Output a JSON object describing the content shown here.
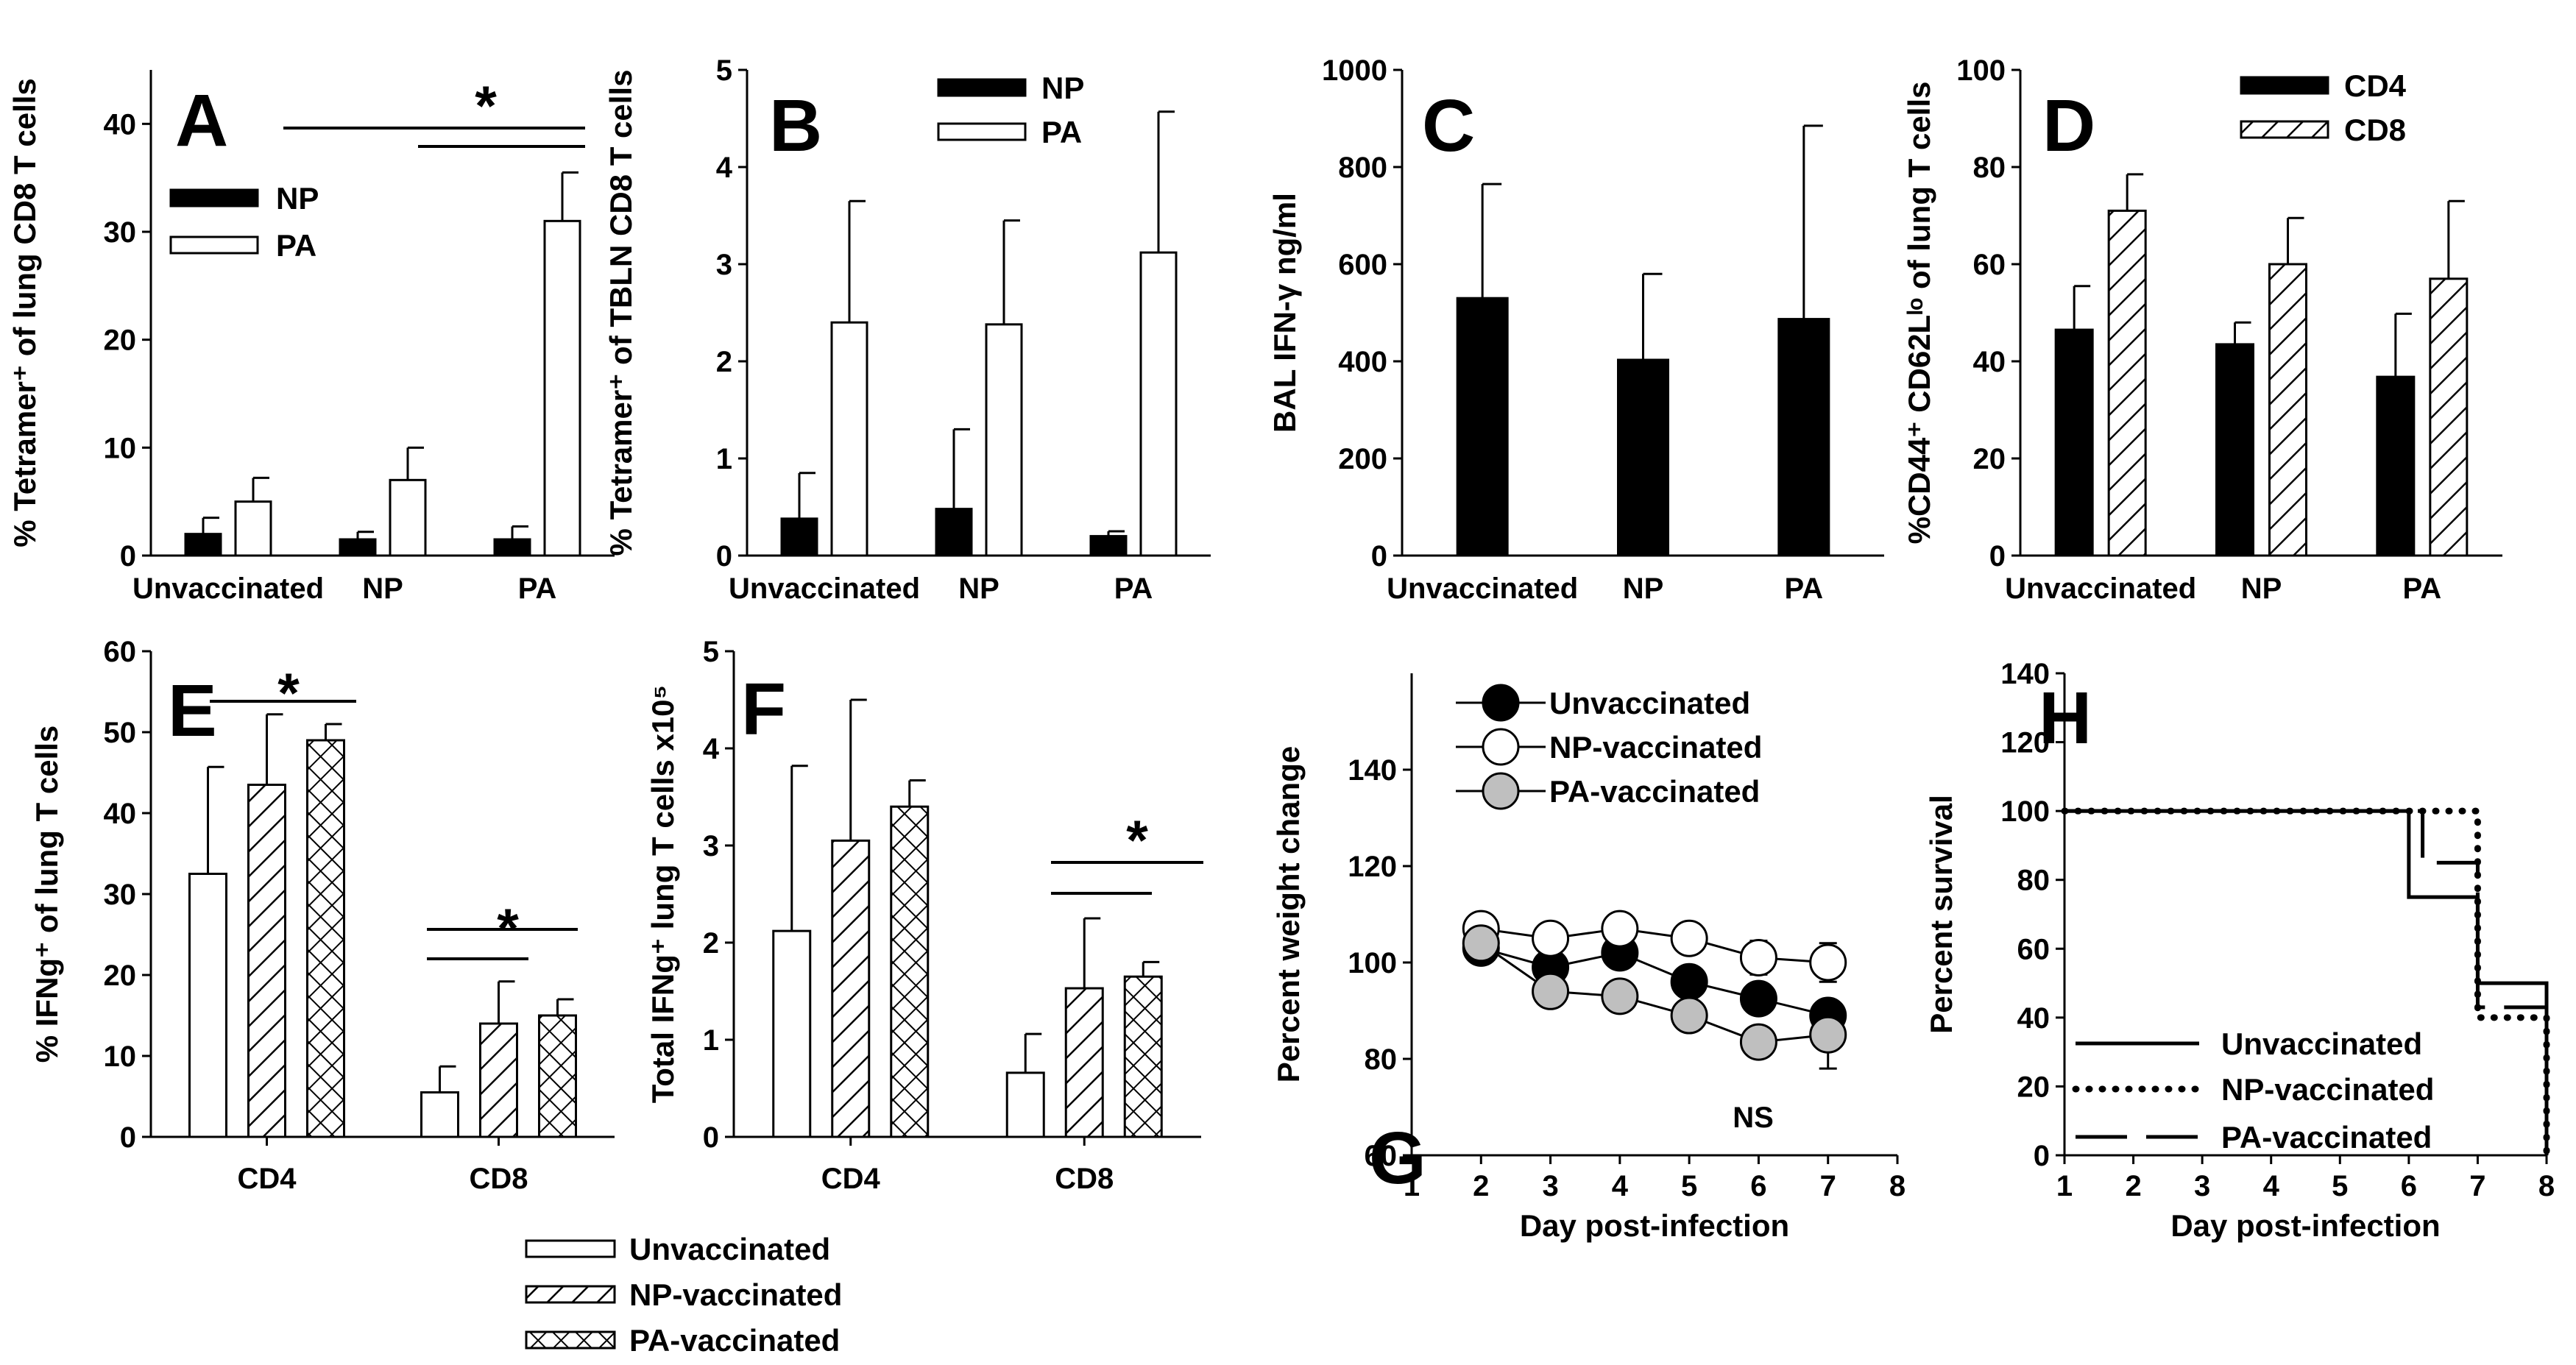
{
  "figure": {
    "legend_bottom": [
      "Unvaccinated",
      "NP-vaccinated",
      "PA-vaccinated"
    ]
  },
  "chart_data": [
    {
      "panel": "A",
      "type": "bar",
      "categories": [
        "Unvaccinated",
        "NP",
        "PA"
      ],
      "ylabel": "% Tetramer⁺ of lung CD8 T cells",
      "ylim": [
        0,
        45
      ],
      "yticks": [
        0,
        10,
        20,
        30,
        40
      ],
      "series": [
        {
          "name": "NP",
          "style": "black",
          "values": [
            2.0,
            1.5,
            1.5
          ],
          "errors": [
            1.5,
            0.7,
            1.2
          ]
        },
        {
          "name": "PA",
          "style": "white",
          "values": [
            5.0,
            7.0,
            31.0
          ],
          "errors": [
            2.2,
            3.0,
            4.5
          ]
        }
      ],
      "legend": [
        "NP",
        "PA"
      ],
      "annotations": [
        "*"
      ]
    },
    {
      "panel": "B",
      "type": "bar",
      "categories": [
        "Unvaccinated",
        "NP",
        "PA"
      ],
      "ylabel": "% Tetramer⁺ of TBLN CD8 T cells",
      "ylim": [
        0,
        5
      ],
      "yticks": [
        0,
        1,
        2,
        3,
        4,
        5
      ],
      "series": [
        {
          "name": "NP",
          "style": "black",
          "values": [
            0.38,
            0.48,
            0.2
          ],
          "errors": [
            0.47,
            0.82,
            0.05
          ]
        },
        {
          "name": "PA",
          "style": "white",
          "values": [
            2.4,
            2.38,
            3.12
          ],
          "errors": [
            1.25,
            1.07,
            1.45
          ]
        }
      ],
      "legend": [
        "NP",
        "PA"
      ]
    },
    {
      "panel": "C",
      "type": "bar",
      "categories": [
        "Unvaccinated",
        "NP",
        "PA"
      ],
      "ylabel": "BAL IFN-γ ng/ml",
      "ylim": [
        0,
        1000
      ],
      "yticks": [
        0,
        200,
        400,
        600,
        800,
        1000
      ],
      "series": [
        {
          "name": "IFN-γ",
          "style": "black",
          "values": [
            530,
            403,
            487
          ],
          "errors": [
            235,
            177,
            398
          ]
        }
      ]
    },
    {
      "panel": "D",
      "type": "bar",
      "categories": [
        "Unvaccinated",
        "NP",
        "PA"
      ],
      "ylabel": "%CD44⁺ CD62Lˡᵒ of lung T cells",
      "ylim": [
        0,
        100
      ],
      "yticks": [
        0,
        20,
        40,
        60,
        80,
        100
      ],
      "series": [
        {
          "name": "CD4",
          "style": "black",
          "values": [
            46.5,
            43.5,
            36.8
          ],
          "errors": [
            9.0,
            4.5,
            13.0
          ]
        },
        {
          "name": "CD8",
          "style": "hatch",
          "values": [
            71.0,
            60.0,
            57.0
          ],
          "errors": [
            7.5,
            9.5,
            16.0
          ]
        }
      ],
      "legend": [
        "CD4",
        "CD8"
      ]
    },
    {
      "panel": "E",
      "type": "bar",
      "categories": [
        "CD4",
        "CD8"
      ],
      "ylabel": "% IFNg⁺ of lung T cells",
      "ylim": [
        0,
        60
      ],
      "yticks": [
        0,
        10,
        20,
        30,
        40,
        50,
        60
      ],
      "series": [
        {
          "name": "Unvaccinated",
          "style": "white",
          "values": [
            32.5,
            5.5
          ],
          "errors": [
            13.2,
            3.2
          ]
        },
        {
          "name": "NP-vaccinated",
          "style": "hatch",
          "values": [
            43.5,
            14.0
          ],
          "errors": [
            8.7,
            5.2
          ]
        },
        {
          "name": "PA-vaccinated",
          "style": "cross",
          "values": [
            49.0,
            15.0
          ],
          "errors": [
            2.0,
            2.0
          ]
        }
      ],
      "annotations": [
        "*",
        "*"
      ]
    },
    {
      "panel": "F",
      "type": "bar",
      "categories": [
        "CD4",
        "CD8"
      ],
      "ylabel": "Total IFNg⁺ lung T cells x10⁵",
      "ylim": [
        0,
        5
      ],
      "yticks": [
        0,
        1,
        2,
        3,
        4,
        5
      ],
      "series": [
        {
          "name": "Unvaccinated",
          "style": "white",
          "values": [
            2.12,
            0.66
          ],
          "errors": [
            1.7,
            0.4
          ]
        },
        {
          "name": "NP-vaccinated",
          "style": "hatch",
          "values": [
            3.05,
            1.53
          ],
          "errors": [
            1.45,
            0.72
          ]
        },
        {
          "name": "PA-vaccinated",
          "style": "cross",
          "values": [
            3.4,
            1.65
          ],
          "errors": [
            0.27,
            0.15
          ]
        }
      ],
      "annotations": [
        "*"
      ]
    },
    {
      "panel": "G",
      "type": "line",
      "xlabel": "Day post-infection",
      "ylabel": "Percent weight change",
      "xlim": [
        1,
        8
      ],
      "ylim": [
        60,
        160
      ],
      "xticks": [
        1,
        2,
        3,
        4,
        5,
        6,
        7,
        8
      ],
      "yticks": [
        60,
        80,
        100,
        120,
        140
      ],
      "x": [
        2,
        3,
        4,
        5,
        6,
        7
      ],
      "series": [
        {
          "name": "Unvaccinated",
          "marker": "black",
          "values": [
            103,
            99,
            102,
            96,
            92.5,
            89
          ],
          "errors": [
            1.5,
            1.5,
            1.5,
            1.5,
            1.5,
            2.5
          ]
        },
        {
          "name": "NP-vaccinated",
          "marker": "white",
          "values": [
            107,
            105,
            107,
            105,
            101,
            100
          ],
          "errors": [
            1.0,
            1.0,
            1.0,
            1.0,
            3.5,
            4.0
          ]
        },
        {
          "name": "PA-vaccinated",
          "marker": "gray",
          "values": [
            104,
            94,
            93,
            89,
            83.5,
            85
          ],
          "errors": [
            1.0,
            1.0,
            1.0,
            1.0,
            1.0,
            7.0
          ]
        }
      ],
      "annotations": [
        "NS"
      ]
    },
    {
      "panel": "H",
      "type": "line",
      "xlabel": "Day post-infection",
      "ylabel": "Percent survival",
      "xlim": [
        1,
        8
      ],
      "ylim": [
        0,
        140
      ],
      "xticks": [
        1,
        2,
        3,
        4,
        5,
        6,
        7,
        8
      ],
      "yticks": [
        0,
        20,
        40,
        60,
        80,
        100,
        120,
        140
      ],
      "series": [
        {
          "name": "Unvaccinated",
          "dash": "solid",
          "points": [
            [
              1,
              100
            ],
            [
              6,
              100
            ],
            [
              6,
              75
            ],
            [
              7,
              75
            ],
            [
              7,
              50
            ],
            [
              8,
              50
            ],
            [
              8,
              0
            ]
          ]
        },
        {
          "name": "NP-vaccinated",
          "dash": "dotted",
          "points": [
            [
              1,
              100
            ],
            [
              7,
              100
            ],
            [
              7,
              40
            ],
            [
              8,
              40
            ],
            [
              8,
              0
            ]
          ]
        },
        {
          "name": "PA-vaccinated",
          "dash": "dashed",
          "points": [
            [
              1,
              100
            ],
            [
              6.2,
              100
            ],
            [
              6.2,
              85
            ],
            [
              7,
              85
            ],
            [
              7,
              43
            ],
            [
              8,
              43
            ],
            [
              8,
              0
            ]
          ]
        }
      ]
    }
  ]
}
